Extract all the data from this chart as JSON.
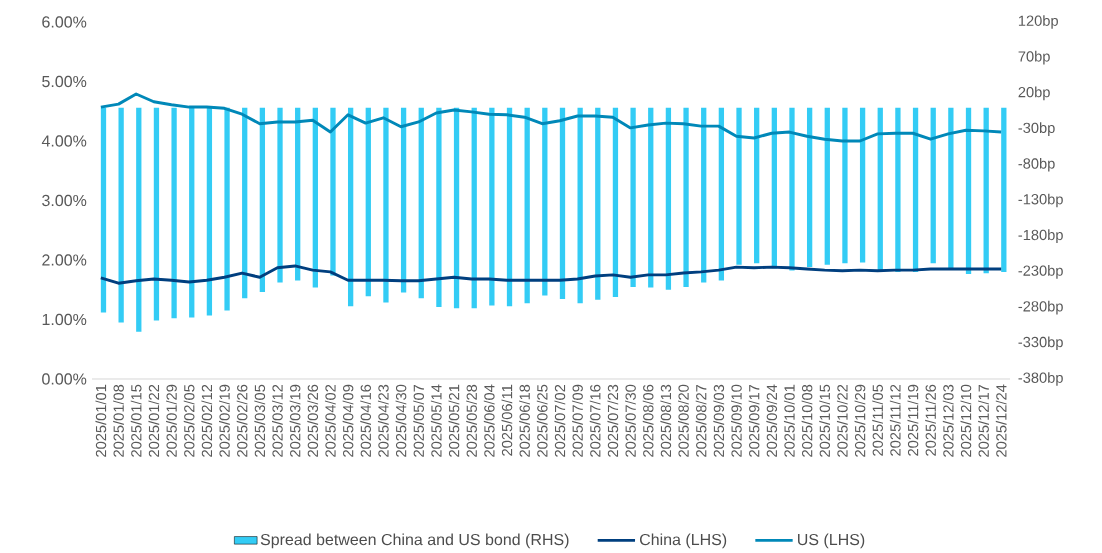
{
  "chart_data": {
    "type": "line",
    "categories": [
      "2025/01/01",
      "2025/01/08",
      "2025/01/15",
      "2025/01/22",
      "2025/01/29",
      "2025/02/05",
      "2025/02/12",
      "2025/02/19",
      "2025/02/26",
      "2025/03/05",
      "2025/03/12",
      "2025/03/19",
      "2025/03/26",
      "2025/04/02",
      "2025/04/09",
      "2025/04/16",
      "2025/04/23",
      "2025/04/30",
      "2025/05/07",
      "2025/05/14",
      "2025/05/21",
      "2025/05/28",
      "2025/06/04",
      "2025/06/11",
      "2025/06/18",
      "2025/06/25",
      "2025/07/02",
      "2025/07/09",
      "2025/07/16",
      "2025/07/23",
      "2025/07/30",
      "2025/08/06",
      "2025/08/13",
      "2025/08/20",
      "2025/08/27",
      "2025/09/03",
      "2025/09/10",
      "2025/09/17",
      "2025/09/24",
      "2025/10/01",
      "2025/10/08",
      "2025/10/15",
      "2025/10/22",
      "2025/10/29",
      "2025/11/05",
      "2025/11/12",
      "2025/11/19",
      "2025/11/26",
      "2025/12/03",
      "2025/12/10",
      "2025/12/17",
      "2025/12/24"
    ],
    "series": [
      {
        "name": "Spread between China and US bond (RHS)",
        "type": "bar",
        "axis": "y2",
        "color": "#33ccf5",
        "values": [
          -287,
          -301,
          -314,
          -298,
          -295,
          -294,
          -291,
          -284,
          -267,
          -258,
          -245,
          -242,
          -252,
          -235,
          -278,
          -264,
          -273,
          -259,
          -267,
          -279,
          -281,
          -281,
          -277,
          -278,
          -274,
          -263,
          -268,
          -274,
          -269,
          -265,
          -251,
          -252,
          -255,
          -251,
          -245,
          -242,
          -220,
          -218,
          -225,
          -228,
          -223,
          -220,
          -218,
          -217,
          -230,
          -230,
          -230,
          -218,
          -227,
          -233,
          -232,
          -230
        ]
      },
      {
        "name": "China (LHS)",
        "color": "#003f7f",
        "values": [
          1.7,
          1.61,
          1.65,
          1.68,
          1.66,
          1.63,
          1.66,
          1.71,
          1.78,
          1.71,
          1.87,
          1.9,
          1.83,
          1.8,
          1.66,
          1.66,
          1.66,
          1.65,
          1.65,
          1.68,
          1.71,
          1.68,
          1.68,
          1.66,
          1.66,
          1.66,
          1.66,
          1.68,
          1.73,
          1.75,
          1.71,
          1.75,
          1.75,
          1.78,
          1.8,
          1.83,
          1.88,
          1.87,
          1.88,
          1.87,
          1.85,
          1.83,
          1.82,
          1.83,
          1.82,
          1.83,
          1.83,
          1.85,
          1.85,
          1.85,
          1.85,
          1.85
        ]
      },
      {
        "name": "US (LHS)",
        "color": "#0088b8",
        "values": [
          4.57,
          4.62,
          4.79,
          4.66,
          4.61,
          4.57,
          4.57,
          4.55,
          4.45,
          4.29,
          4.32,
          4.32,
          4.35,
          4.15,
          4.44,
          4.3,
          4.39,
          4.24,
          4.32,
          4.47,
          4.52,
          4.49,
          4.45,
          4.44,
          4.4,
          4.29,
          4.34,
          4.42,
          4.42,
          4.4,
          4.22,
          4.27,
          4.3,
          4.29,
          4.25,
          4.25,
          4.08,
          4.05,
          4.13,
          4.15,
          4.08,
          4.03,
          4.0,
          4.0,
          4.12,
          4.13,
          4.13,
          4.03,
          4.12,
          4.18,
          4.17,
          4.15
        ]
      }
    ],
    "ylim": [
      0,
      6
    ],
    "yticks": [
      {
        "value": 0,
        "label": "0.00%"
      },
      {
        "value": 1,
        "label": "1.00%"
      },
      {
        "value": 2,
        "label": "2.00%"
      },
      {
        "value": 3,
        "label": "3.00%"
      },
      {
        "value": 4,
        "label": "4.00%"
      },
      {
        "value": 5,
        "label": "5.00%"
      },
      {
        "value": 6,
        "label": "6.00%"
      }
    ],
    "y2lim": [
      -380,
      120
    ],
    "y2ticks": [
      {
        "value": -380,
        "label": "-380bp"
      },
      {
        "value": -330,
        "label": "-330bp"
      },
      {
        "value": -280,
        "label": "-280bp"
      },
      {
        "value": -230,
        "label": "-230bp"
      },
      {
        "value": -180,
        "label": "-180bp"
      },
      {
        "value": -130,
        "label": "-130bp"
      },
      {
        "value": -80,
        "label": "-80bp"
      },
      {
        "value": -30,
        "label": "-30bp"
      },
      {
        "value": 20,
        "label": "20bp"
      },
      {
        "value": 70,
        "label": "70bp"
      },
      {
        "value": 120,
        "label": "120bp"
      }
    ],
    "legend": "bottom"
  }
}
